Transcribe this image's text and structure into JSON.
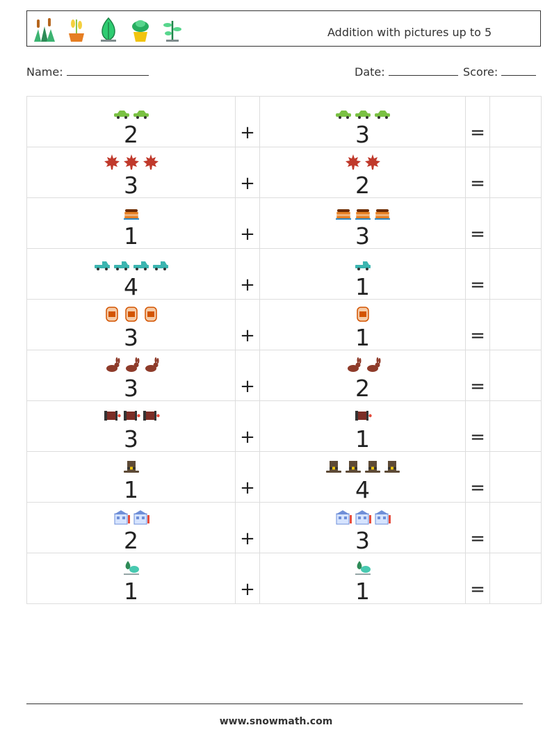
{
  "header": {
    "title": "Addition with pictures up to 5",
    "icons": [
      "cattail-plant-icon",
      "potted-wheat-icon",
      "leaf-icon",
      "succulent-pot-icon",
      "sprout-plant-icon"
    ]
  },
  "fields": {
    "name_label": "Name:",
    "date_label": "Date:",
    "score_label": "Score:"
  },
  "symbols": {
    "plus": "+",
    "equals": "="
  },
  "problems": [
    {
      "a": "2",
      "b": "3",
      "icon": "car-icon",
      "color": "#7ac143"
    },
    {
      "a": "3",
      "b": "2",
      "icon": "maple-leaf-icon",
      "color": "#c0392b"
    },
    {
      "a": "1",
      "b": "3",
      "icon": "pancake-stack-icon",
      "color": "#e67e22"
    },
    {
      "a": "4",
      "b": "1",
      "icon": "pickup-truck-icon",
      "color": "#3bb5b0"
    },
    {
      "a": "3",
      "b": "1",
      "icon": "barrel-icon",
      "color": "#d35400"
    },
    {
      "a": "3",
      "b": "2",
      "icon": "rabbit-icon",
      "color": "#8e3b2a"
    },
    {
      "a": "3",
      "b": "1",
      "icon": "accordion-icon",
      "color": "#7b2d26"
    },
    {
      "a": "1",
      "b": "4",
      "icon": "pilgrim-hat-icon",
      "color": "#5d4a36"
    },
    {
      "a": "2",
      "b": "3",
      "icon": "house-icon",
      "color": "#6f8fd8"
    },
    {
      "a": "1",
      "b": "1",
      "icon": "tree-bush-icon",
      "color": "#2e8b57"
    }
  ],
  "footer": {
    "website": "www.snowmath.com"
  }
}
